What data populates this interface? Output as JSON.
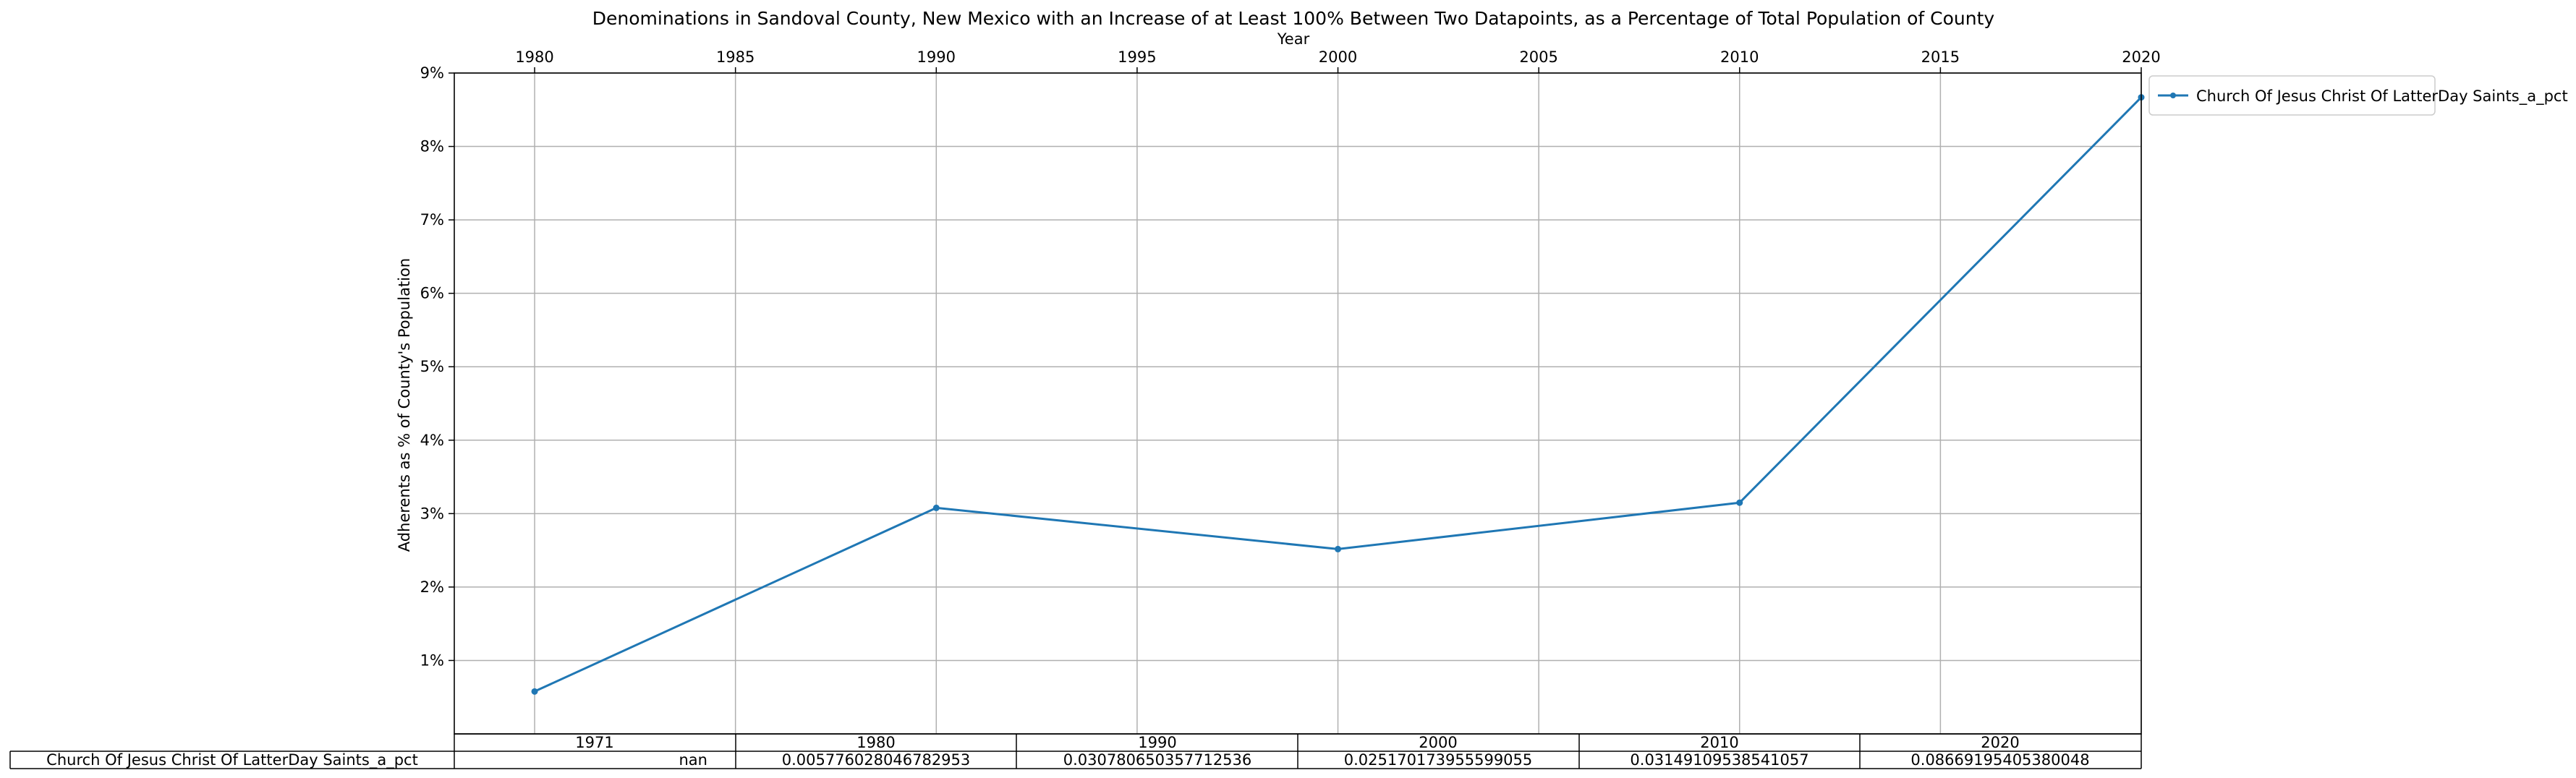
{
  "chart_data": {
    "type": "line",
    "title": "Denominations in Sandoval County, New Mexico with an Increase of at Least 100% Between Two Datapoints, as a Percentage of Total Population of County",
    "xlabel": "Year",
    "ylabel": "Adherents as % of County's Population",
    "xlim": [
      1978,
      2020
    ],
    "ylim": [
      0.0,
      0.09
    ],
    "x_ticks": [
      "1980",
      "1985",
      "1990",
      "1995",
      "2000",
      "2005",
      "2010",
      "2015",
      "2020"
    ],
    "y_ticks": [
      "1%",
      "2%",
      "3%",
      "4%",
      "5%",
      "6%",
      "7%",
      "8%",
      "9%"
    ],
    "x_axis_position": "top",
    "grid": true,
    "legend_position": "outside upper right",
    "series": [
      {
        "name": "Church Of Jesus Christ Of LatterDay Saints_a_pct",
        "color": "#1f77b4",
        "marker": "dot",
        "x": [
          1980,
          1990,
          2000,
          2010,
          2020
        ],
        "y": [
          0.005776028046782953,
          0.030780650357712536,
          0.025170173955599055,
          0.03149109538541057,
          0.08669195405380048
        ]
      }
    ],
    "table": {
      "columns": [
        "1971",
        "1980",
        "1990",
        "2000",
        "2010",
        "2020"
      ],
      "row_label": "Church Of Jesus Christ Of LatterDay Saints_a_pct",
      "cells": [
        "nan",
        "0.005776028046782953",
        "0.030780650357712536",
        "0.025170173955599055",
        "0.03149109538541057",
        "0.08669195405380048"
      ]
    }
  }
}
